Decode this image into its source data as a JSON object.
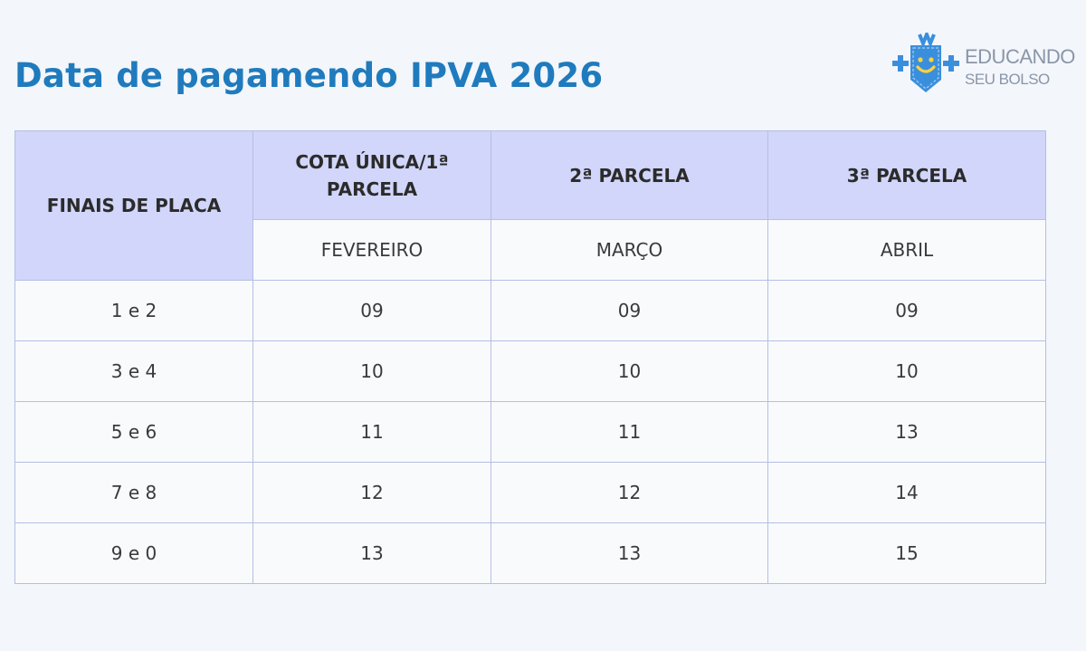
{
  "title": "Data de pagamendo IPVA 2026",
  "logo": {
    "line1": "EDUCANDO",
    "line2": "SEU BOLSO",
    "icon": "smiling-pocket-icon",
    "colors": {
      "blue": "#3a8fdc",
      "yellow": "#ffd23f"
    }
  },
  "table": {
    "row_header": "FINAIS DE PLACA",
    "columns": [
      {
        "label": "COTA ÚNICA/1ª PARCELA",
        "month": "FEVEREIRO"
      },
      {
        "label": "2ª PARCELA",
        "month": "MARÇO"
      },
      {
        "label": "3ª PARCELA",
        "month": "ABRIL"
      }
    ],
    "rows": [
      {
        "plate": "1 e 2",
        "values": [
          "09",
          "09",
          "09"
        ]
      },
      {
        "plate": "3 e 4",
        "values": [
          "10",
          "10",
          "10"
        ]
      },
      {
        "plate": "5 e 6",
        "values": [
          "11",
          "11",
          "13"
        ]
      },
      {
        "plate": "7 e 8",
        "values": [
          "12",
          "12",
          "14"
        ]
      },
      {
        "plate": "9 e 0",
        "values": [
          "13",
          "13",
          "15"
        ]
      }
    ]
  },
  "colors": {
    "title": "#1f7bbd",
    "header_bg": "#d1d6fa",
    "border": "#b4bfe3",
    "background": "#f3f6fb"
  }
}
